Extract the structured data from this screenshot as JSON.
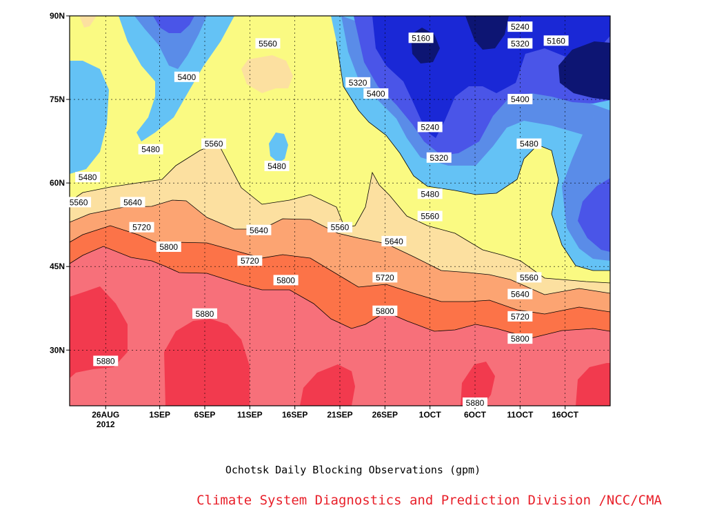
{
  "chart_data": {
    "type": "contour",
    "title": "Ochotsk Daily Blocking Observations (gpm)",
    "x_tick_labels": [
      "26AUG",
      "1SEP",
      "6SEP",
      "11SEP",
      "16SEP",
      "21SEP",
      "26SEP",
      "1OCT",
      "6OCT",
      "11OCT",
      "16OCT"
    ],
    "x_year_label": "2012",
    "x_tick_days": [
      4,
      10,
      15,
      20,
      25,
      30,
      35,
      40,
      45,
      50,
      55
    ],
    "xlim_days": [
      0,
      60
    ],
    "y_tick_labels": [
      "30N",
      "45N",
      "60N",
      "75N",
      "90N"
    ],
    "y_tick_values": [
      30,
      45,
      60,
      75,
      90
    ],
    "ylim": [
      20,
      90
    ],
    "band_levels": [
      5160,
      5240,
      5320,
      5400,
      5480,
      5560,
      5640,
      5720,
      5800,
      5880
    ],
    "band_colors": {
      "below_5160": "#0d1573",
      "5160_5240": "#1a28d6",
      "5240_5320": "#4a55e8",
      "5320_5400": "#5a8ce8",
      "5400_5480": "#64c2f5",
      "5480_5560": "#fafa82",
      "5560_5640": "#fce0a0",
      "5640_5720": "#fca472",
      "5720_5800": "#fc7348",
      "5800_5880": "#f7707a",
      "above_5880": "#f23a4e"
    },
    "contour_labels": [
      {
        "text": "5880",
        "day": 4,
        "lat": 28
      },
      {
        "text": "5880",
        "day": 15,
        "lat": 36.5
      },
      {
        "text": "5880",
        "day": 45,
        "lat": 20.5
      },
      {
        "text": "5800",
        "day": 11,
        "lat": 48.5
      },
      {
        "text": "5800",
        "day": 24,
        "lat": 42.5
      },
      {
        "text": "5800",
        "day": 35,
        "lat": 37
      },
      {
        "text": "5800",
        "day": 50,
        "lat": 32
      },
      {
        "text": "5720",
        "day": 8,
        "lat": 52
      },
      {
        "text": "5720",
        "day": 20,
        "lat": 46
      },
      {
        "text": "5720",
        "day": 35,
        "lat": 43
      },
      {
        "text": "5720",
        "day": 50,
        "lat": 36
      },
      {
        "text": "5640",
        "day": 7,
        "lat": 56.5
      },
      {
        "text": "5640",
        "day": 21,
        "lat": 51.5
      },
      {
        "text": "5640",
        "day": 36,
        "lat": 49.5
      },
      {
        "text": "5640",
        "day": 50,
        "lat": 40
      },
      {
        "text": "5560",
        "day": 1,
        "lat": 56.5
      },
      {
        "text": "5560",
        "day": 16,
        "lat": 67
      },
      {
        "text": "5560",
        "day": 22,
        "lat": 85
      },
      {
        "text": "5560",
        "day": 30,
        "lat": 52
      },
      {
        "text": "5560",
        "day": 40,
        "lat": 54
      },
      {
        "text": "5560",
        "day": 51,
        "lat": 43
      },
      {
        "text": "5480",
        "day": 2,
        "lat": 61
      },
      {
        "text": "5480",
        "day": 9,
        "lat": 66
      },
      {
        "text": "5480",
        "day": 23,
        "lat": 63
      },
      {
        "text": "5480",
        "day": 40,
        "lat": 58
      },
      {
        "text": "5480",
        "day": 51,
        "lat": 67
      },
      {
        "text": "5400",
        "day": 13,
        "lat": 79
      },
      {
        "text": "5400",
        "day": 34,
        "lat": 76
      },
      {
        "text": "5400",
        "day": 50,
        "lat": 75
      },
      {
        "text": "5320",
        "day": 32,
        "lat": 78
      },
      {
        "text": "5320",
        "day": 41,
        "lat": 64.5
      },
      {
        "text": "5320",
        "day": 50,
        "lat": 85
      },
      {
        "text": "5240",
        "day": 40,
        "lat": 70
      },
      {
        "text": "5240",
        "day": 50,
        "lat": 88
      },
      {
        "text": "5160",
        "day": 39,
        "lat": 86
      },
      {
        "text": "5160",
        "day": 54,
        "lat": 85.5
      }
    ]
  },
  "credit": "Climate System Diagnostics and Prediction Division /NCC/CMA"
}
